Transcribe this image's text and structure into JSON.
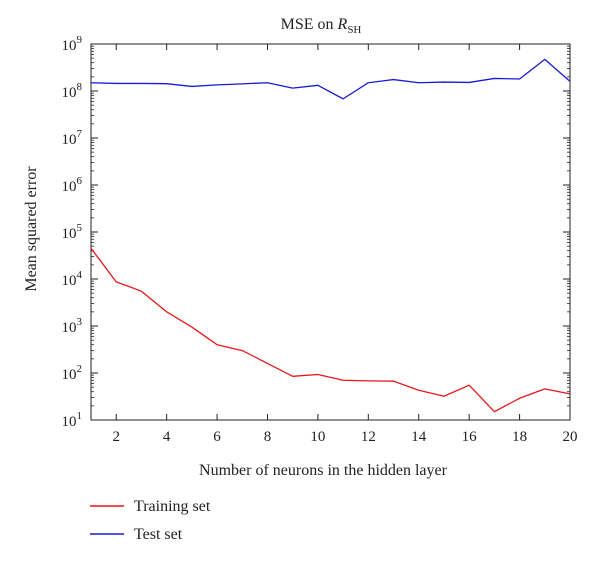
{
  "chart_data": {
    "type": "line",
    "title_main": "MSE on ",
    "title_sub_R": "R",
    "title_sub_SH": "SH",
    "xlabel": "Number of neurons in the hidden layer",
    "ylabel": "Mean squared error",
    "xlim": [
      1,
      20
    ],
    "ylim": [
      10,
      1000000000
    ],
    "yscale": "log",
    "grid": false,
    "legend_position": "below",
    "x_ticks": [
      2,
      4,
      6,
      8,
      10,
      12,
      14,
      16,
      18,
      20
    ],
    "x_tick_labels": [
      "2",
      "4",
      "6",
      "8",
      "10",
      "12",
      "14",
      "16",
      "18",
      "20"
    ],
    "y_ticks": [
      {
        "value": 10,
        "base": "10",
        "exp": "1"
      },
      {
        "value": 100,
        "base": "10",
        "exp": "2"
      },
      {
        "value": 1000,
        "base": "10",
        "exp": "3"
      },
      {
        "value": 10000,
        "base": "10",
        "exp": "4"
      },
      {
        "value": 100000,
        "base": "10",
        "exp": "5"
      },
      {
        "value": 1000000,
        "base": "10",
        "exp": "6"
      },
      {
        "value": 10000000,
        "base": "10",
        "exp": "7"
      },
      {
        "value": 100000000,
        "base": "10",
        "exp": "8"
      },
      {
        "value": 1000000000,
        "base": "10",
        "exp": "9"
      }
    ],
    "x": [
      1,
      2,
      3,
      4,
      5,
      6,
      7,
      8,
      9,
      10,
      11,
      12,
      13,
      14,
      15,
      16,
      17,
      18,
      19,
      20
    ],
    "series": [
      {
        "name": "Training set",
        "color": "#e8161b",
        "values": [
          45000,
          8700,
          5500,
          2000,
          950,
          400,
          300,
          160,
          85,
          93,
          70,
          68,
          67,
          43,
          32,
          55,
          15,
          29,
          46,
          36
        ]
      },
      {
        "name": "Test set",
        "color": "#1a1ad6",
        "values": [
          150000000,
          145000000,
          145000000,
          143000000,
          125000000,
          135000000,
          142000000,
          150000000,
          115000000,
          132000000,
          68000000,
          150000000,
          175000000,
          150000000,
          155000000,
          152000000,
          185000000,
          180000000,
          470000000,
          160000000
        ]
      }
    ]
  }
}
